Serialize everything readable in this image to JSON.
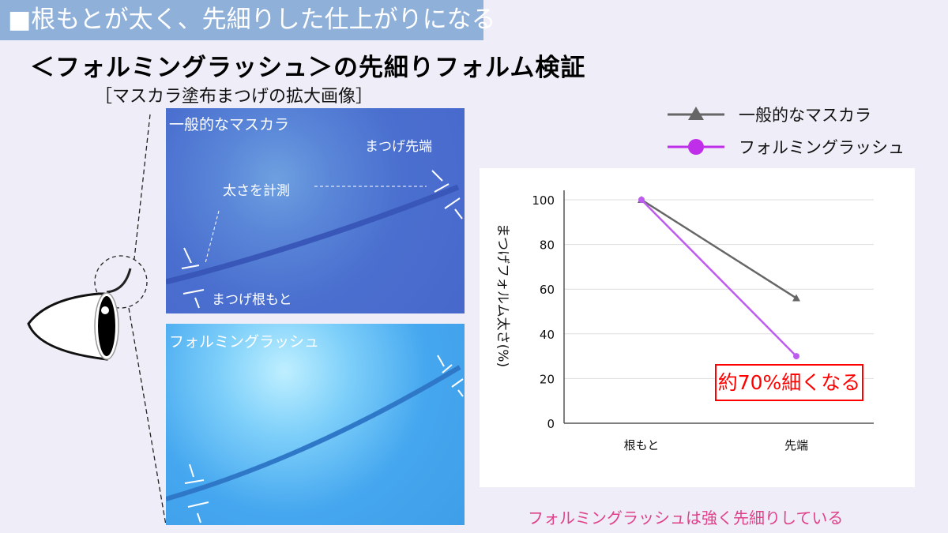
{
  "banner": "■根もとが太く、先細りした仕上がりになる",
  "title": "＜フォルミングラッシュ＞の先細りフォルム検証",
  "subtitle": "［マスカラ塗布まつげの拡大画像］",
  "photos": {
    "top": {
      "label": "一般的なマスカラ",
      "tip": "まつげ先端",
      "measure": "太さを計測",
      "root": "まつげ根もと"
    },
    "bottom": {
      "label": "フォルミングラッシュ"
    }
  },
  "callout": "約70%細くなる",
  "note": "フォルミングラッシュは強く先細りしている",
  "chart_data": {
    "type": "line",
    "categories": [
      "根もと",
      "先端"
    ],
    "series": [
      {
        "name": "一般的なマスカラ",
        "values": [
          100,
          56
        ],
        "color": "#666666",
        "marker": "triangle"
      },
      {
        "name": "フォルミングラッシュ",
        "values": [
          100,
          30
        ],
        "color": "#bf5cf0",
        "marker": "circle"
      }
    ],
    "ylabel": "まつげフォルム太さ(%)",
    "ylim": [
      0,
      100
    ],
    "yticks": [
      "0",
      "20",
      "40",
      "60",
      "80",
      "100"
    ],
    "grid": true,
    "legend": "top-right"
  }
}
